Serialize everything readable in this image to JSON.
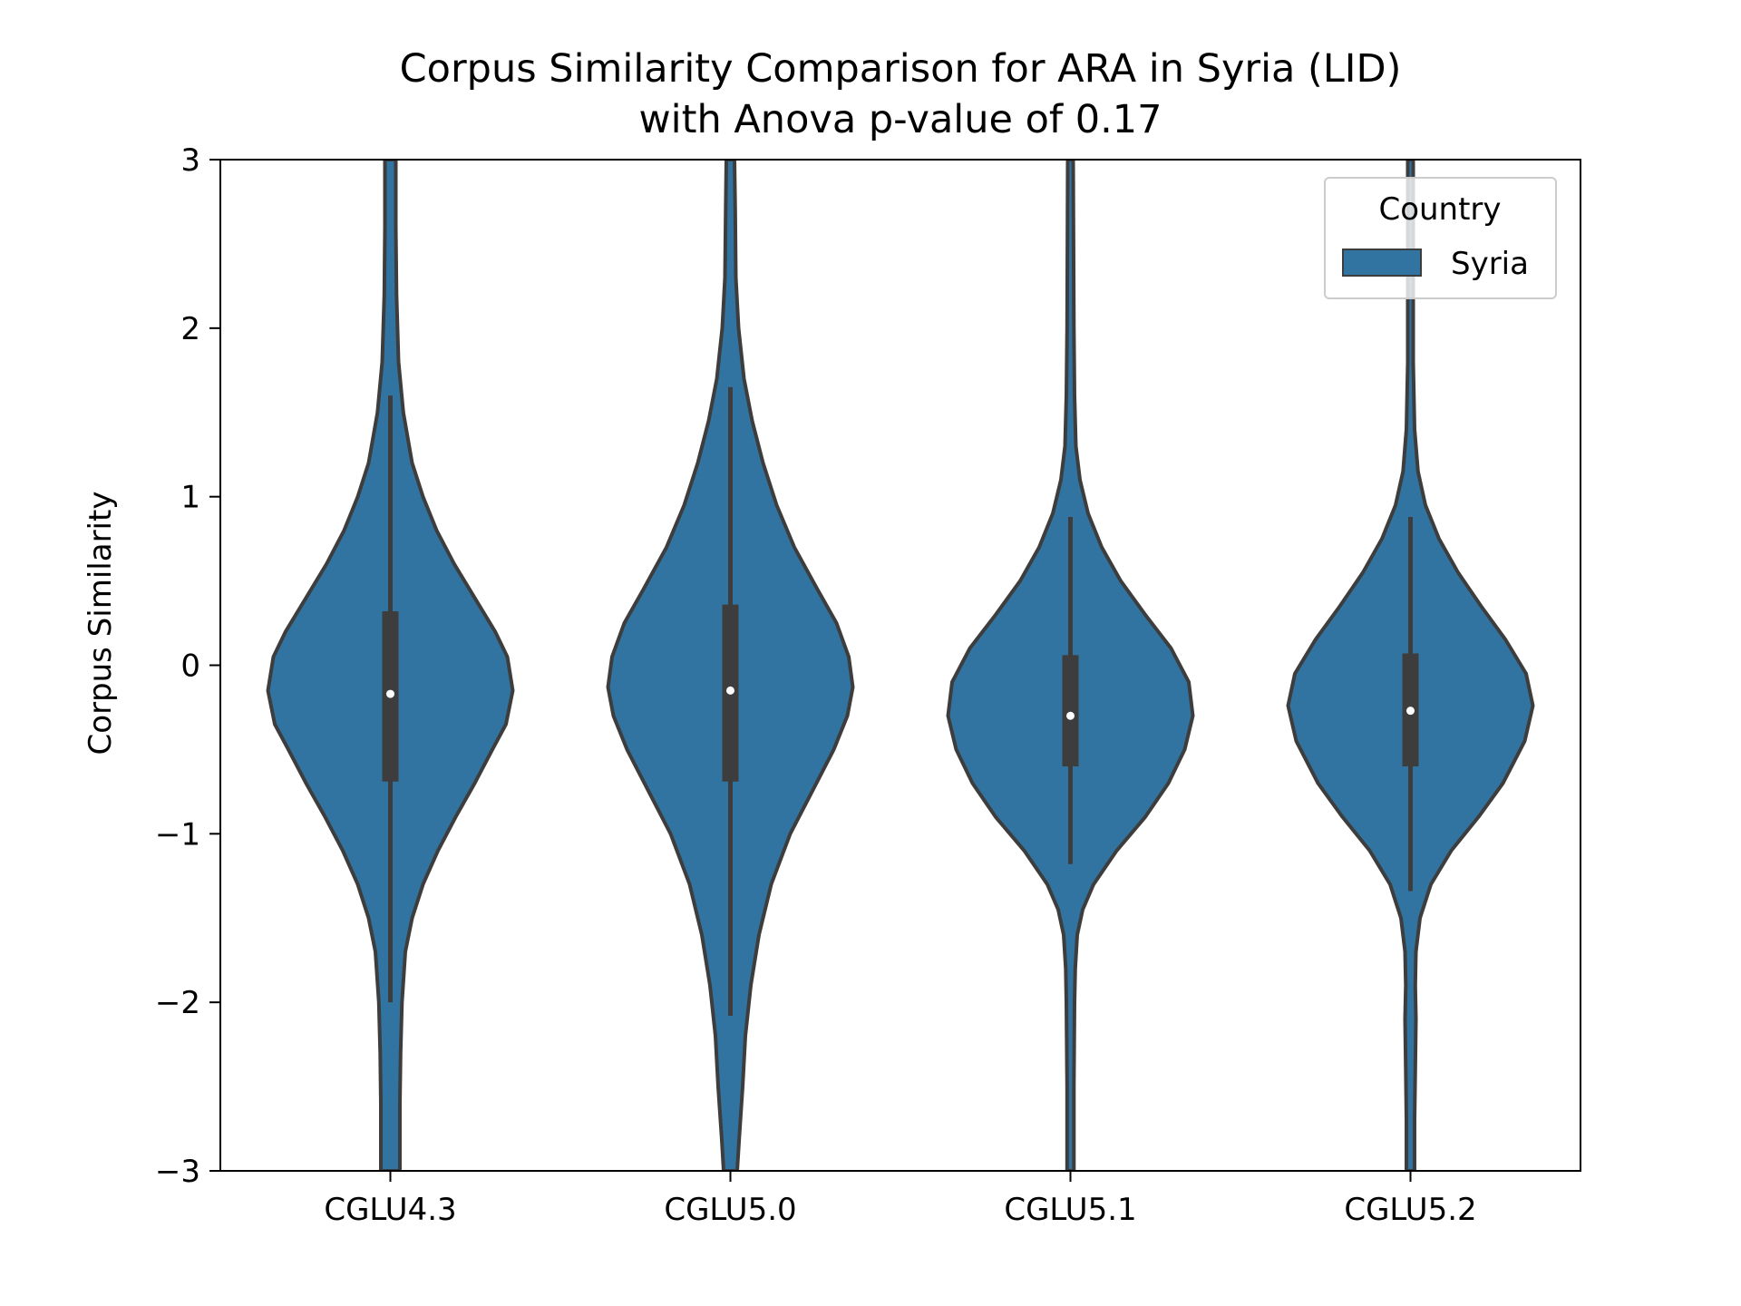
{
  "chart_data": {
    "type": "violin",
    "title_line1": "Corpus Similarity Comparison for ARA in Syria (LID)",
    "title_line2": "with Anova p-value of 0.17",
    "xlabel": "",
    "ylabel": "Corpus Similarity",
    "ylim": [
      -3,
      3
    ],
    "yticks": [
      3,
      2,
      1,
      0,
      -1,
      -2,
      -3
    ],
    "ytick_labels": [
      "3",
      "2",
      "1",
      "0",
      "−1",
      "−2",
      "−3"
    ],
    "categories": [
      "CGLU4.3",
      "CGLU5.0",
      "CGLU5.1",
      "CGLU5.2"
    ],
    "legend": {
      "title": "Country",
      "entries": [
        {
          "label": "Syria",
          "color": "#3274a1"
        }
      ],
      "position": "top-right"
    },
    "colors": {
      "fill": "#3274a1",
      "outline": "#3d3d3d",
      "box": "#3d3d3d",
      "median": "#ffffff"
    },
    "series": [
      {
        "name": "Syria",
        "violins": [
          {
            "category": "CGLU4.3",
            "median": -0.17,
            "q1": -0.69,
            "q3": 0.32,
            "whisker_low": -2.0,
            "whisker_high": 1.6,
            "profile": [
              [
                -3.0,
                0.07
              ],
              [
                -2.6,
                0.07
              ],
              [
                -2.3,
                0.075
              ],
              [
                -2.0,
                0.085
              ],
              [
                -1.7,
                0.11
              ],
              [
                -1.5,
                0.16
              ],
              [
                -1.3,
                0.24
              ],
              [
                -1.1,
                0.35
              ],
              [
                -0.9,
                0.48
              ],
              [
                -0.7,
                0.62
              ],
              [
                -0.5,
                0.75
              ],
              [
                -0.35,
                0.85
              ],
              [
                -0.15,
                0.9
              ],
              [
                0.05,
                0.86
              ],
              [
                0.2,
                0.77
              ],
              [
                0.4,
                0.62
              ],
              [
                0.6,
                0.47
              ],
              [
                0.8,
                0.34
              ],
              [
                1.0,
                0.24
              ],
              [
                1.2,
                0.16
              ],
              [
                1.5,
                0.095
              ],
              [
                1.8,
                0.06
              ],
              [
                2.2,
                0.045
              ],
              [
                2.6,
                0.04
              ],
              [
                3.0,
                0.04
              ]
            ]
          },
          {
            "category": "CGLU5.0",
            "median": -0.15,
            "q1": -0.69,
            "q3": 0.36,
            "whisker_low": -2.08,
            "whisker_high": 1.65,
            "profile": [
              [
                -3.0,
                0.05
              ],
              [
                -2.8,
                0.065
              ],
              [
                -2.5,
                0.09
              ],
              [
                -2.2,
                0.11
              ],
              [
                -1.9,
                0.15
              ],
              [
                -1.6,
                0.21
              ],
              [
                -1.3,
                0.3
              ],
              [
                -1.0,
                0.44
              ],
              [
                -0.75,
                0.6
              ],
              [
                -0.5,
                0.76
              ],
              [
                -0.3,
                0.86
              ],
              [
                -0.13,
                0.9
              ],
              [
                0.05,
                0.87
              ],
              [
                0.25,
                0.78
              ],
              [
                0.45,
                0.64
              ],
              [
                0.7,
                0.47
              ],
              [
                0.95,
                0.34
              ],
              [
                1.2,
                0.24
              ],
              [
                1.45,
                0.16
              ],
              [
                1.7,
                0.1
              ],
              [
                2.0,
                0.06
              ],
              [
                2.3,
                0.04
              ],
              [
                2.7,
                0.035
              ],
              [
                3.0,
                0.03
              ]
            ]
          },
          {
            "category": "CGLU5.1",
            "median": -0.3,
            "q1": -0.6,
            "q3": 0.06,
            "whisker_low": -1.18,
            "whisker_high": 0.88,
            "profile": [
              [
                -3.0,
                0.025
              ],
              [
                -2.5,
                0.025
              ],
              [
                -2.0,
                0.03
              ],
              [
                -1.8,
                0.035
              ],
              [
                -1.6,
                0.05
              ],
              [
                -1.45,
                0.09
              ],
              [
                -1.3,
                0.17
              ],
              [
                -1.1,
                0.34
              ],
              [
                -0.9,
                0.55
              ],
              [
                -0.7,
                0.72
              ],
              [
                -0.5,
                0.84
              ],
              [
                -0.3,
                0.9
              ],
              [
                -0.1,
                0.87
              ],
              [
                0.1,
                0.74
              ],
              [
                0.3,
                0.55
              ],
              [
                0.5,
                0.37
              ],
              [
                0.7,
                0.23
              ],
              [
                0.9,
                0.13
              ],
              [
                1.1,
                0.07
              ],
              [
                1.3,
                0.04
              ],
              [
                1.6,
                0.03
              ],
              [
                2.0,
                0.025
              ],
              [
                3.0,
                0.02
              ]
            ]
          },
          {
            "category": "CGLU5.2",
            "median": -0.27,
            "q1": -0.6,
            "q3": 0.07,
            "whisker_low": -1.34,
            "whisker_high": 0.88,
            "profile": [
              [
                -3.0,
                0.03
              ],
              [
                -2.7,
                0.03
              ],
              [
                -2.4,
                0.035
              ],
              [
                -2.1,
                0.04
              ],
              [
                -1.9,
                0.035
              ],
              [
                -1.7,
                0.04
              ],
              [
                -1.5,
                0.07
              ],
              [
                -1.3,
                0.15
              ],
              [
                -1.1,
                0.3
              ],
              [
                -0.9,
                0.5
              ],
              [
                -0.7,
                0.68
              ],
              [
                -0.45,
                0.84
              ],
              [
                -0.24,
                0.9
              ],
              [
                -0.05,
                0.85
              ],
              [
                0.15,
                0.7
              ],
              [
                0.35,
                0.52
              ],
              [
                0.55,
                0.35
              ],
              [
                0.75,
                0.21
              ],
              [
                0.95,
                0.11
              ],
              [
                1.15,
                0.055
              ],
              [
                1.4,
                0.03
              ],
              [
                1.8,
                0.02
              ],
              [
                3.0,
                0.02
              ]
            ]
          }
        ]
      }
    ]
  }
}
